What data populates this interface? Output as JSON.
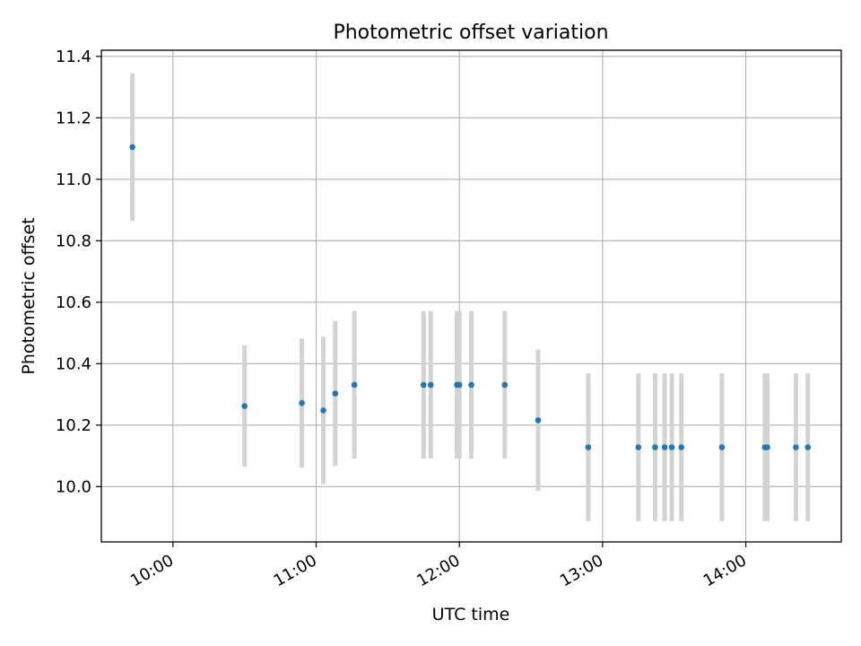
{
  "chart_data": {
    "type": "scatter",
    "title": "Photometric offset variation",
    "xlabel": "UTC time",
    "ylabel": "Photometric offset",
    "x_tick_labels": [
      "10:00",
      "11:00",
      "12:00",
      "13:00",
      "14:00"
    ],
    "y_tick_labels": [
      "10.0",
      "10.2",
      "10.4",
      "10.6",
      "10.8",
      "11.0",
      "11.2",
      "11.4"
    ],
    "xlim": [
      "09:30",
      "14:40"
    ],
    "ylim": [
      9.82,
      11.42
    ],
    "grid": true,
    "series": [
      {
        "points": [
          {
            "x": "09:43",
            "y": 11.105,
            "err": 0.24
          },
          {
            "x": "10:30",
            "y": 10.262,
            "err": 0.198
          },
          {
            "x": "10:54",
            "y": 10.272,
            "err": 0.21
          },
          {
            "x": "11:03",
            "y": 10.248,
            "err": 0.24
          },
          {
            "x": "11:08",
            "y": 10.303,
            "err": 0.236
          },
          {
            "x": "11:16",
            "y": 10.331,
            "err": 0.24
          },
          {
            "x": "11:45",
            "y": 10.331,
            "err": 0.24
          },
          {
            "x": "11:48",
            "y": 10.331,
            "err": 0.24
          },
          {
            "x": "11:59",
            "y": 10.331,
            "err": 0.24
          },
          {
            "x": "12:00",
            "y": 10.331,
            "err": 0.24
          },
          {
            "x": "12:05",
            "y": 10.331,
            "err": 0.24
          },
          {
            "x": "12:19",
            "y": 10.331,
            "err": 0.24
          },
          {
            "x": "12:33",
            "y": 10.216,
            "err": 0.23
          },
          {
            "x": "12:54",
            "y": 10.128,
            "err": 0.24
          },
          {
            "x": "13:15",
            "y": 10.128,
            "err": 0.24
          },
          {
            "x": "13:22",
            "y": 10.128,
            "err": 0.24
          },
          {
            "x": "13:26",
            "y": 10.128,
            "err": 0.24
          },
          {
            "x": "13:29",
            "y": 10.128,
            "err": 0.24
          },
          {
            "x": "13:33",
            "y": 10.128,
            "err": 0.24
          },
          {
            "x": "13:50",
            "y": 10.128,
            "err": 0.24
          },
          {
            "x": "14:08",
            "y": 10.128,
            "err": 0.24
          },
          {
            "x": "14:09",
            "y": 10.128,
            "err": 0.24
          },
          {
            "x": "14:21",
            "y": 10.128,
            "err": 0.24
          },
          {
            "x": "14:26",
            "y": 10.128,
            "err": 0.24
          }
        ]
      }
    ]
  },
  "colors": {
    "marker": "#1f77b4",
    "errorbar": "#d3d3d3",
    "grid": "#b0b0b0",
    "axis": "#000000"
  }
}
